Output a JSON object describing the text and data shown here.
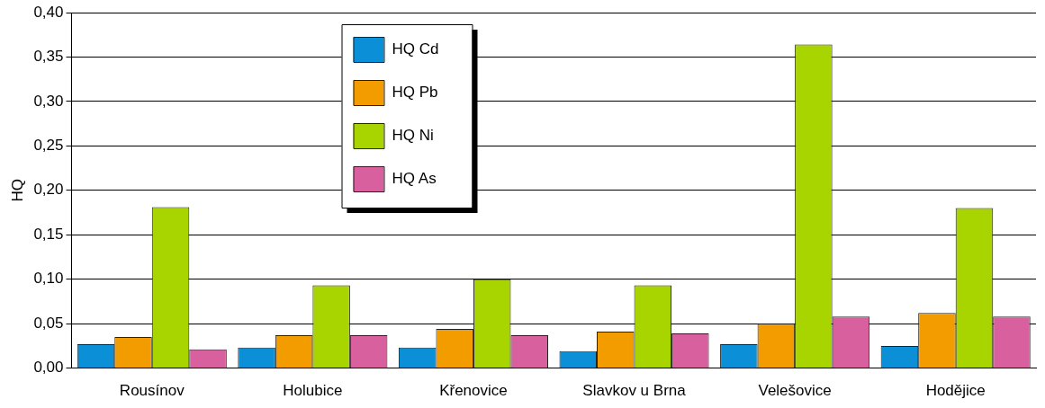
{
  "chart_data": {
    "type": "bar",
    "ylabel": "HQ",
    "categories": [
      "Rousínov",
      "Holubice",
      "Křenovice",
      "Slavkov u Brna",
      "Velešovice",
      "Hodějice"
    ],
    "series": [
      {
        "name": "HQ Cd",
        "color": "#0b8fd6",
        "values": [
          0.027,
          0.023,
          0.023,
          0.019,
          0.027,
          0.025
        ]
      },
      {
        "name": "HQ Pb",
        "color": "#f39c00",
        "values": [
          0.035,
          0.037,
          0.044,
          0.041,
          0.05,
          0.062
        ]
      },
      {
        "name": "HQ Ni",
        "color": "#a8d400",
        "values": [
          0.181,
          0.093,
          0.1,
          0.093,
          0.364,
          0.18
        ]
      },
      {
        "name": "HQ As",
        "color": "#d9609e",
        "values": [
          0.021,
          0.037,
          0.037,
          0.039,
          0.058,
          0.058
        ]
      }
    ],
    "ylim": [
      0,
      0.4
    ],
    "yticks": [
      {
        "value": 0,
        "label": "0,00"
      },
      {
        "value": 0.05,
        "label": "0,05"
      },
      {
        "value": 0.1,
        "label": "0,10"
      },
      {
        "value": 0.15,
        "label": "0,15"
      },
      {
        "value": 0.2,
        "label": "0,20"
      },
      {
        "value": 0.25,
        "label": "0,25"
      },
      {
        "value": 0.3,
        "label": "0,30"
      },
      {
        "value": 0.35,
        "label": "0,35"
      },
      {
        "value": 0.4,
        "label": "0,40"
      }
    ],
    "grid": "y",
    "legend": "top"
  }
}
